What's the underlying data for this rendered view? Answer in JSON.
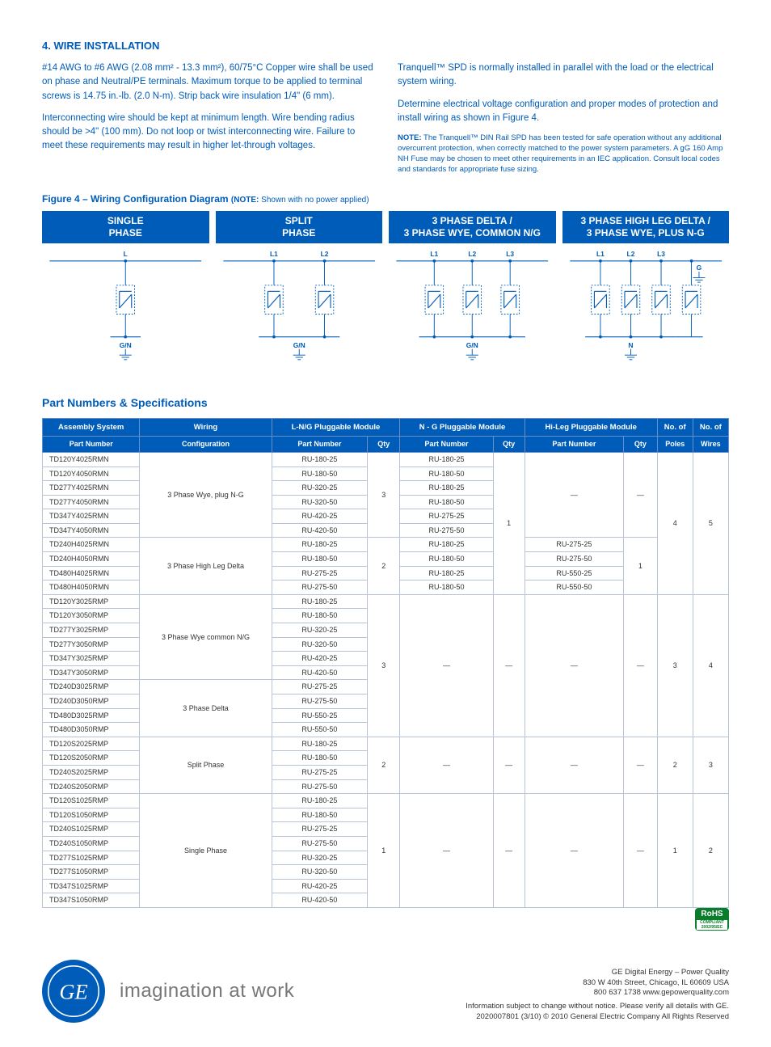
{
  "section4": {
    "title": "4. WIRE INSTALLATION",
    "left_p1": "#14 AWG to #6 AWG (2.08 mm² - 13.3 mm²), 60/75°C Copper wire shall be used on phase and Neutral/PE terminals. Maximum torque to be applied to terminal screws is 14.75 in.-lb. (2.0 N-m). Strip back wire insulation 1/4\" (6 mm).",
    "left_p2": "Interconnecting wire should be kept at minimum length. Wire bending radius should be >4\" (100 mm). Do not loop or twist interconnecting wire. Failure to meet these requirements may result in higher let-through voltages.",
    "right_p1": "Tranquell™ SPD is normally installed in parallel with the load or the electrical system wiring.",
    "right_p2": "Determine electrical voltage configuration and proper modes of protection and install wiring as shown in Figure 4.",
    "note_label": "NOTE:",
    "note": " The Tranquell™ DIN Rail SPD has been tested for safe operation without any additional overcurrent protection, when correctly matched to the power system parameters. A gG 160 Amp NH Fuse may be chosen to meet other requirements in an IEC application. Consult local codes and standards for appropriate fuse sizing."
  },
  "figure": {
    "caption_main": "Figure 4 – Wiring Configuration Diagram",
    "caption_note_label": "(NOTE:",
    "caption_note": " Shown with no power applied)",
    "diagrams": [
      {
        "title": "SINGLE\nPHASE",
        "legs": [
          "L"
        ],
        "bottom": "G/N",
        "ground_right": false
      },
      {
        "title": "SPLIT\nPHASE",
        "legs": [
          "L1",
          "L2"
        ],
        "bottom": "G/N",
        "ground_right": false
      },
      {
        "title": "3 PHASE DELTA /\n3 PHASE WYE, COMMON N/G",
        "legs": [
          "L1",
          "L2",
          "L3"
        ],
        "bottom": "G/N",
        "ground_right": false
      },
      {
        "title": "3 PHASE HIGH LEG DELTA /\n3 PHASE WYE, PLUS N-G",
        "legs": [
          "L1",
          "L2",
          "L3"
        ],
        "bottom": "N",
        "ground_right": true
      }
    ]
  },
  "parts": {
    "title": "Part Numbers & Specifications",
    "header_groups": [
      "Assembly System",
      "Wiring",
      "L-N/G Pluggable Module",
      "N - G Pluggable Module",
      "Hi-Leg Pluggable Module",
      "No. of",
      "No. of"
    ],
    "header_sub": [
      "Part Number",
      "Configuration",
      "Part Number",
      "Qty",
      "Part Number",
      "Qty",
      "Part Number",
      "Qty",
      "Poles",
      "Wires"
    ],
    "groups": [
      {
        "config": "3 Phase Wye, plug N-G",
        "lng_qty": "3",
        "ng_qty_merge_next": true,
        "hi_pn": "—",
        "hi_qty": "—",
        "poles_merge_next": true,
        "wires_merge_next": true,
        "rows": [
          {
            "asm": "TD120Y4025RMN",
            "lng": "RU-180-25",
            "ng": "RU-180-25"
          },
          {
            "asm": "TD120Y4050RMN",
            "lng": "RU-180-50",
            "ng": "RU-180-50"
          },
          {
            "asm": "TD277Y4025RMN",
            "lng": "RU-320-25",
            "ng": "RU-180-25"
          },
          {
            "asm": "TD277Y4050RMN",
            "lng": "RU-320-50",
            "ng": "RU-180-50"
          },
          {
            "asm": "TD347Y4025RMN",
            "lng": "RU-420-25",
            "ng": "RU-275-25"
          },
          {
            "asm": "TD347Y4050RMN",
            "lng": "RU-420-50",
            "ng": "RU-275-50"
          }
        ]
      },
      {
        "config": "3 Phase High Leg Delta",
        "lng_qty": "2",
        "ng_qty": "1",
        "hi_qty": "1",
        "poles": "4",
        "wires": "5",
        "rows": [
          {
            "asm": "TD240H4025RMN",
            "lng": "RU-180-25",
            "ng": "RU-180-25",
            "hi": "RU-275-25"
          },
          {
            "asm": "TD240H4050RMN",
            "lng": "RU-180-50",
            "ng": "RU-180-50",
            "hi": "RU-275-50"
          },
          {
            "asm": "TD480H4025RMN",
            "lng": "RU-275-25",
            "ng": "RU-180-25",
            "hi": "RU-550-25"
          },
          {
            "asm": "TD480H4050RMN",
            "lng": "RU-275-50",
            "ng": "RU-180-50",
            "hi": "RU-550-50"
          }
        ]
      },
      {
        "config": "3 Phase Wye common N/G",
        "lng_qty_merge_next": true,
        "ng_pn": "—",
        "ng_qty": "—",
        "hi_pn": "—",
        "hi_qty": "—",
        "poles": "3",
        "wires": "4",
        "rows": [
          {
            "asm": "TD120Y3025RMP",
            "lng": "RU-180-25"
          },
          {
            "asm": "TD120Y3050RMP",
            "lng": "RU-180-50"
          },
          {
            "asm": "TD277Y3025RMP",
            "lng": "RU-320-25"
          },
          {
            "asm": "TD277Y3050RMP",
            "lng": "RU-320-50"
          },
          {
            "asm": "TD347Y3025RMP",
            "lng": "RU-420-25"
          },
          {
            "asm": "TD347Y3050RMP",
            "lng": "RU-420-50"
          }
        ]
      },
      {
        "config": "3 Phase Delta",
        "lng_qty": "3",
        "rows": [
          {
            "asm": "TD240D3025RMP",
            "lng": "RU-275-25"
          },
          {
            "asm": "TD240D3050RMP",
            "lng": "RU-275-50"
          },
          {
            "asm": "TD480D3025RMP",
            "lng": "RU-550-25"
          },
          {
            "asm": "TD480D3050RMP",
            "lng": "RU-550-50"
          }
        ]
      },
      {
        "config": "Split Phase",
        "lng_qty": "2",
        "ng_pn": "—",
        "ng_qty": "—",
        "hi_pn": "—",
        "hi_qty": "—",
        "poles": "2",
        "wires": "3",
        "rows": [
          {
            "asm": "TD120S2025RMP",
            "lng": "RU-180-25"
          },
          {
            "asm": "TD120S2050RMP",
            "lng": "RU-180-50"
          },
          {
            "asm": "TD240S2025RMP",
            "lng": "RU-275-25"
          },
          {
            "asm": "TD240S2050RMP",
            "lng": "RU-275-50"
          }
        ]
      },
      {
        "config": "Single Phase",
        "lng_qty": "1",
        "ng_pn": "—",
        "ng_qty": "—",
        "hi_pn": "—",
        "hi_qty": "—",
        "poles": "1",
        "wires": "2",
        "rows": [
          {
            "asm": "TD120S1025RMP",
            "lng": "RU-180-25"
          },
          {
            "asm": "TD120S1050RMP",
            "lng": "RU-180-50"
          },
          {
            "asm": "TD240S1025RMP",
            "lng": "RU-275-25"
          },
          {
            "asm": "TD240S1050RMP",
            "lng": "RU-275-50"
          },
          {
            "asm": "TD277S1025RMP",
            "lng": "RU-320-25"
          },
          {
            "asm": "TD277S1050RMP",
            "lng": "RU-320-50"
          },
          {
            "asm": "TD347S1025RMP",
            "lng": "RU-420-25"
          },
          {
            "asm": "TD347S1050RMP",
            "lng": "RU-420-50"
          }
        ]
      }
    ]
  },
  "footer": {
    "tagline": "imagination at work",
    "company": "GE Digital Energy – Power Quality",
    "addr": "830 W 40th Street, Chicago, IL 60609 USA",
    "phone_web": "800 637 1738   www.gepowerquality.com",
    "disclaimer": "Information subject to change without notice.  Please verify all details with GE.",
    "doc": "2020007801 (3/10)          © 2010 General Electric Company  All Rights Reserved",
    "rohs": "RoHS",
    "rohs_sub": "COMPLIANT 2002/95/EC"
  },
  "colors": {
    "brand": "#005cb9",
    "border": "#b8c4d6"
  }
}
